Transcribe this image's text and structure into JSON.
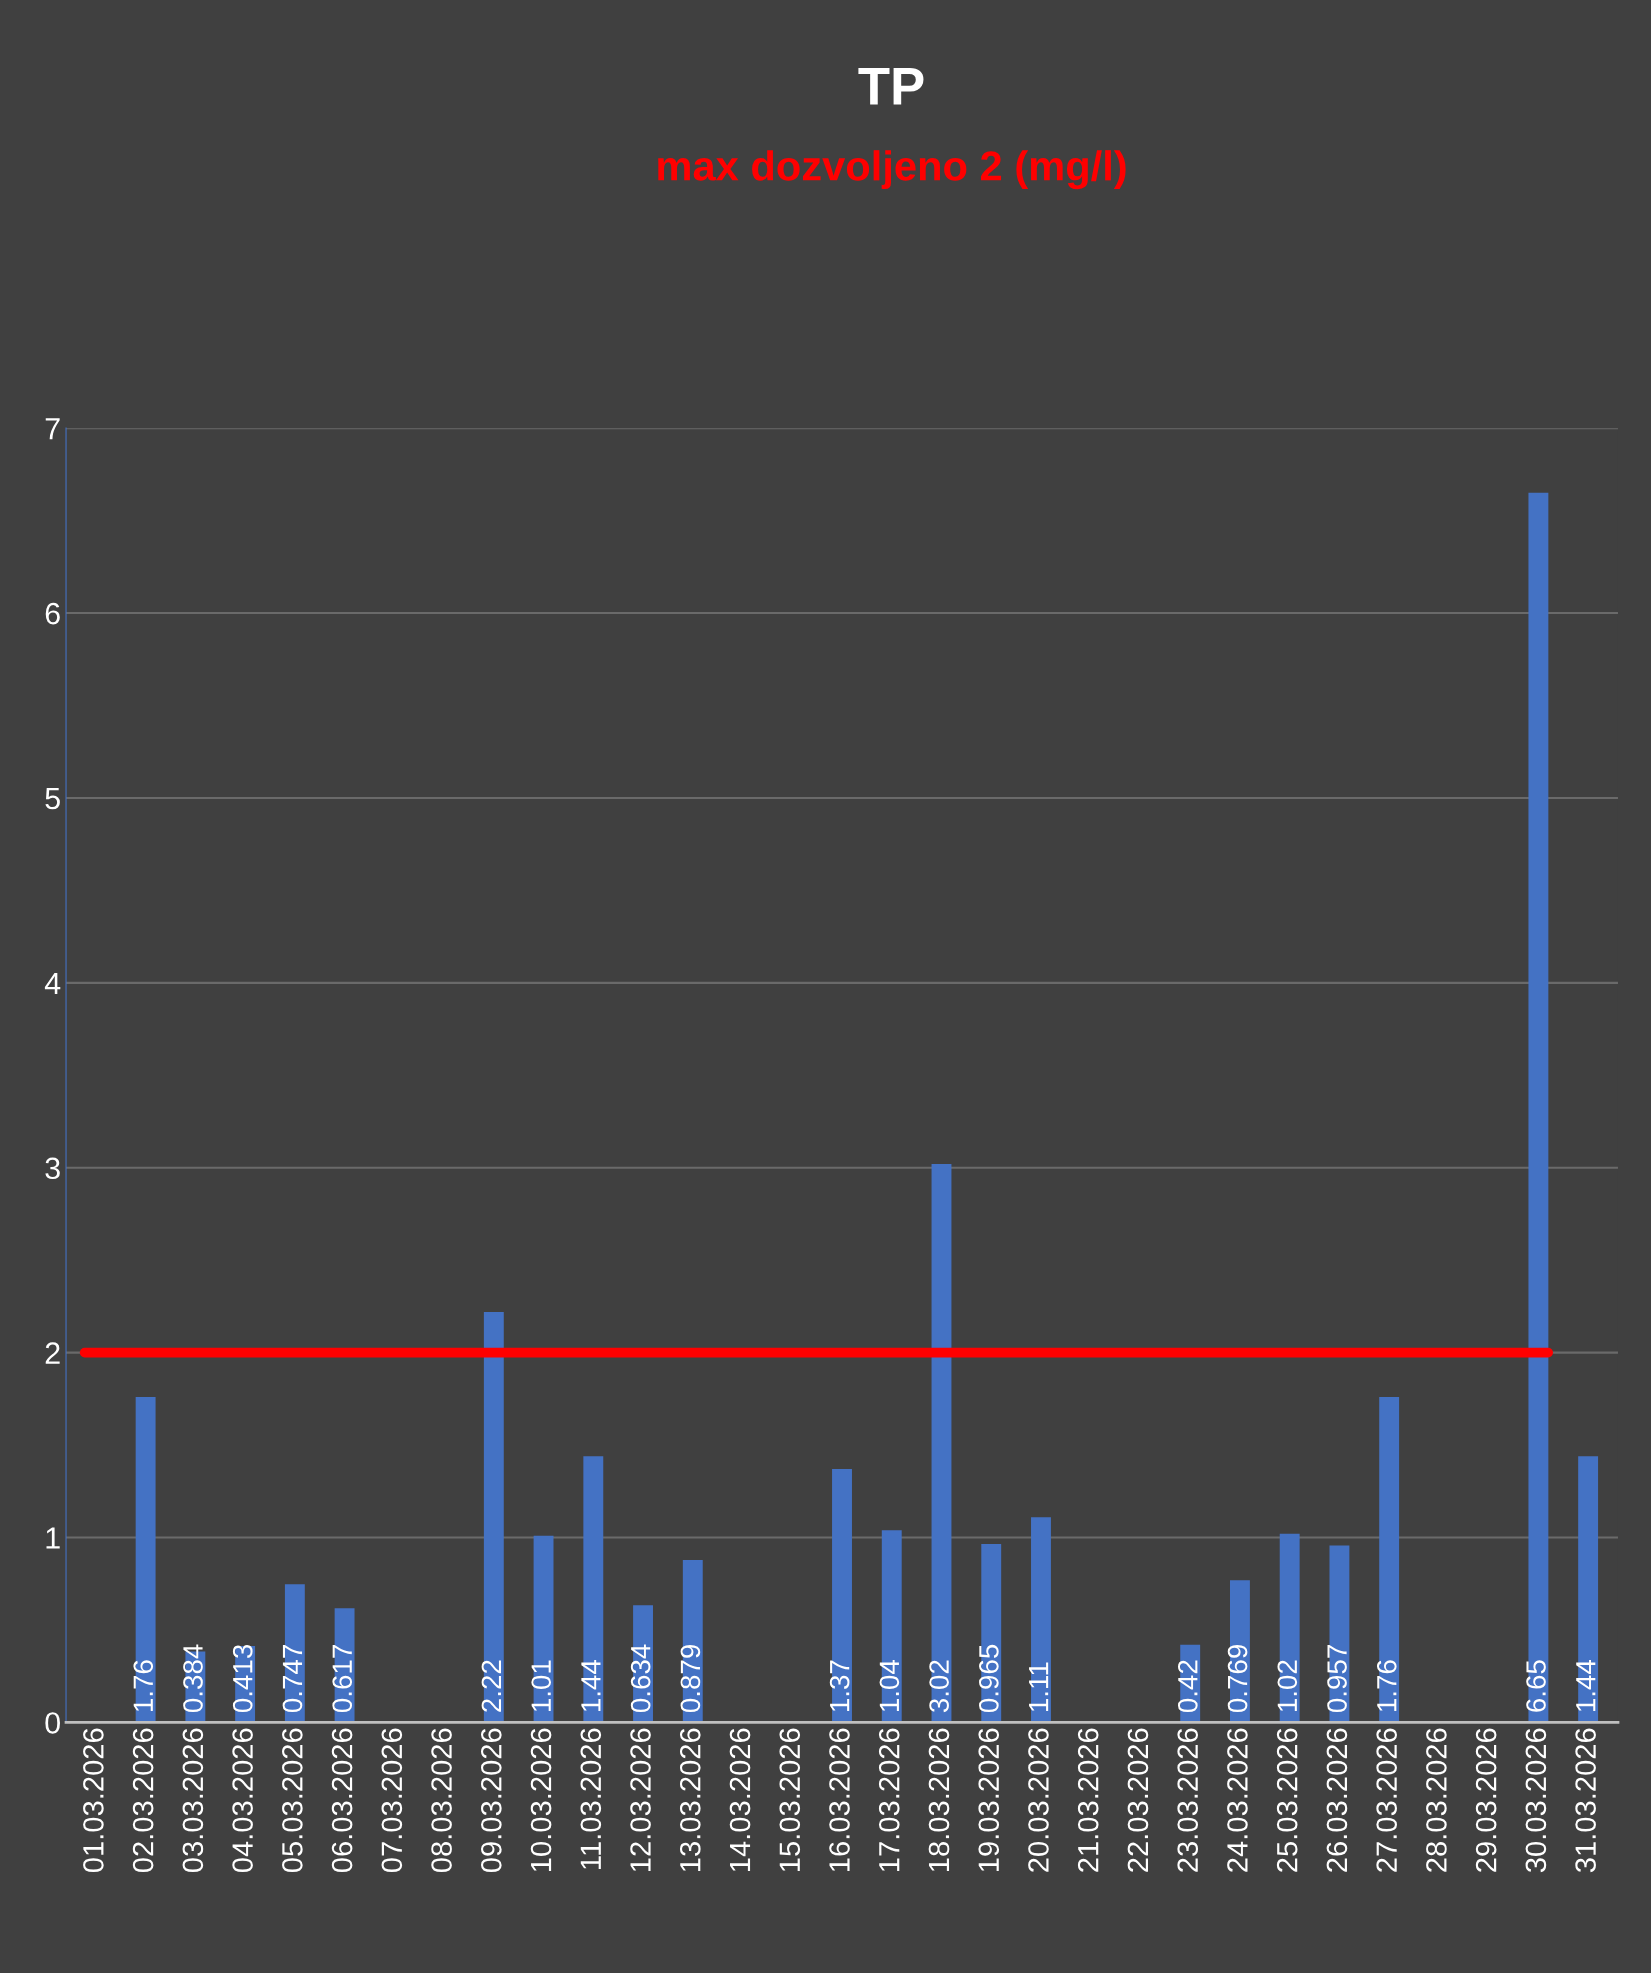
{
  "chart_data": {
    "type": "bar",
    "title": "TP",
    "subtitle": "max dozvoljeno 2 (mg/l)",
    "categories": [
      "01.03.2026",
      "02.03.2026",
      "03.03.2026",
      "04.03.2026",
      "05.03.2026",
      "06.03.2026",
      "07.03.2026",
      "08.03.2026",
      "09.03.2026",
      "10.03.2026",
      "11.03.2026",
      "12.03.2026",
      "13.03.2026",
      "14.03.2026",
      "15.03.2026",
      "16.03.2026",
      "17.03.2026",
      "18.03.2026",
      "19.03.2026",
      "20.03.2026",
      "21.03.2026",
      "22.03.2026",
      "23.03.2026",
      "24.03.2026",
      "25.03.2026",
      "26.03.2026",
      "27.03.2026",
      "28.03.2026",
      "29.03.2026",
      "30.03.2026",
      "31.03.2026"
    ],
    "values": [
      null,
      1.76,
      0.384,
      0.413,
      0.747,
      0.617,
      null,
      null,
      2.22,
      1.01,
      1.44,
      0.634,
      0.879,
      null,
      null,
      1.37,
      1.04,
      3.02,
      0.965,
      1.11,
      null,
      null,
      0.42,
      0.769,
      1.02,
      0.957,
      1.76,
      null,
      null,
      6.65,
      1.44
    ],
    "color": "#4472c4",
    "ylim": [
      0,
      7
    ],
    "yticks": [
      0,
      1,
      2,
      3,
      4,
      5,
      6,
      7
    ],
    "grid": "y",
    "data_labels": true,
    "ref_lines": [
      {
        "axis": "y",
        "value": 2,
        "color": "#ff0000"
      }
    ]
  }
}
